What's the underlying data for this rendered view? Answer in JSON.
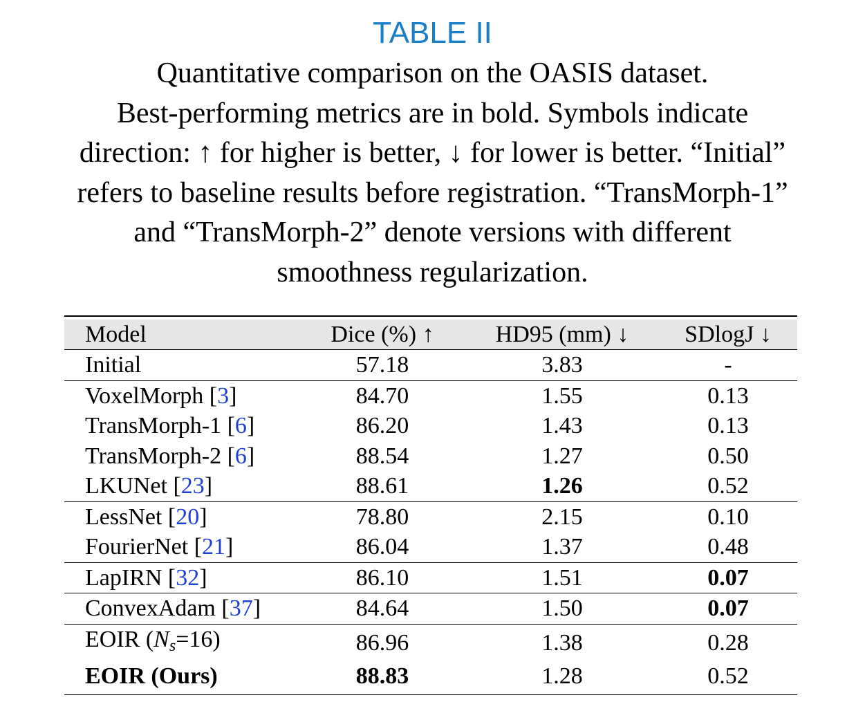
{
  "table_label": "TABLE II",
  "caption_lines": [
    "Quantitative comparison on the OASIS dataset.",
    "Best-performing metrics are in bold. Symbols indicate",
    "direction: ↑ for higher is better, ↓ for lower is better. “Initial”",
    "refers to baseline results before registration. “TransMorph-1”",
    "and “TransMorph-2” denote versions with different",
    "smoothness regularization."
  ],
  "headers": [
    "Model",
    "Dice (%) ↑",
    "HD95 (mm) ↓",
    "SDlogJ ↓"
  ],
  "rows": [
    {
      "name": "Initial",
      "ref": "",
      "dice": "57.18",
      "hd95": "3.83",
      "sdlogj": "-",
      "sep": false
    },
    {
      "name": "VoxelMorph",
      "ref": "3",
      "dice": "84.70",
      "hd95": "1.55",
      "sdlogj": "0.13",
      "sep": true
    },
    {
      "name": "TransMorph-1",
      "ref": "6",
      "dice": "86.20",
      "hd95": "1.43",
      "sdlogj": "0.13",
      "sep": false
    },
    {
      "name": "TransMorph-2",
      "ref": "6",
      "dice": "88.54",
      "hd95": "1.27",
      "sdlogj": "0.50",
      "sep": false
    },
    {
      "name": "LKUNet",
      "ref": "23",
      "dice": "88.61",
      "hd95": "1.26",
      "sdlogj": "0.52",
      "sep": false,
      "bold": [
        "hd95"
      ]
    },
    {
      "name": "LessNet",
      "ref": "20",
      "dice": "78.80",
      "hd95": "2.15",
      "sdlogj": "0.10",
      "sep": true
    },
    {
      "name": "FourierNet",
      "ref": "21",
      "dice": "86.04",
      "hd95": "1.37",
      "sdlogj": "0.48",
      "sep": false
    },
    {
      "name": "LapIRN",
      "ref": "32",
      "dice": "86.10",
      "hd95": "1.51",
      "sdlogj": "0.07",
      "sep": true,
      "bold": [
        "sdlogj"
      ]
    },
    {
      "name": "ConvexAdam",
      "ref": "37",
      "dice": "84.64",
      "hd95": "1.50",
      "sdlogj": "0.07",
      "sep": true,
      "bold": [
        "sdlogj"
      ]
    },
    {
      "name": "EOIR (",
      "name_var": "N",
      "name_sub": "s",
      "name_tail": "=16)",
      "ref": "",
      "dice": "86.96",
      "hd95": "1.38",
      "sdlogj": "0.28",
      "sep": true
    },
    {
      "name": "EOIR (Ours)",
      "ref": "",
      "dice": "88.83",
      "hd95": "1.28",
      "sdlogj": "0.52",
      "sep": false,
      "bold": [
        "name",
        "dice"
      ]
    }
  ],
  "colors": {
    "table_label": "#1a7fc9",
    "reference_link": "#1f3fd6",
    "header_bg": "#e6e6e6"
  }
}
